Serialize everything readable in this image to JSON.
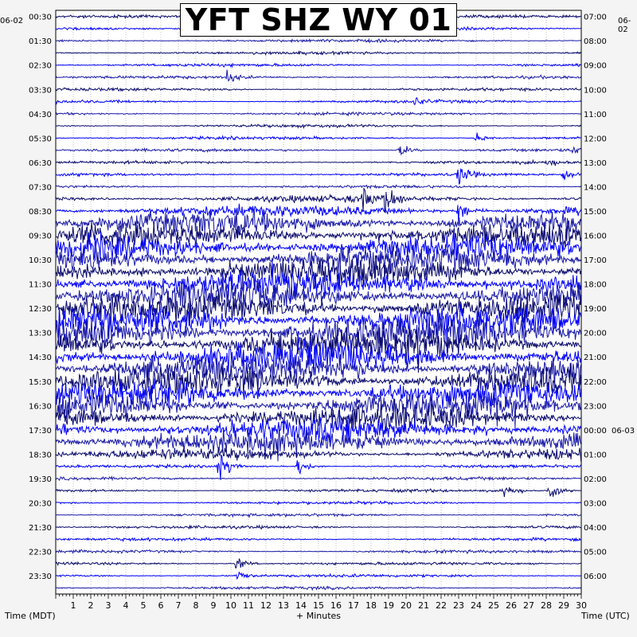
{
  "chart_data": {
    "type": "helicorder",
    "title": "YFT SHZ WY 01",
    "left_date": "06-02",
    "right_date": "06-02",
    "right_date_change": "06-03",
    "left_time_labels": [
      "00:30",
      "01:30",
      "02:30",
      "03:30",
      "04:30",
      "05:30",
      "06:30",
      "07:30",
      "08:30",
      "09:30",
      "10:30",
      "11:30",
      "12:30",
      "13:30",
      "14:30",
      "15:30",
      "16:30",
      "17:30",
      "18:30",
      "19:30",
      "20:30",
      "21:30",
      "22:30",
      "23:30"
    ],
    "right_time_labels": [
      "07:00",
      "08:00",
      "09:00",
      "10:00",
      "11:00",
      "12:00",
      "13:00",
      "14:00",
      "15:00",
      "16:00",
      "17:00",
      "18:00",
      "19:00",
      "20:00",
      "21:00",
      "22:00",
      "23:00",
      "00:00",
      "01:00",
      "02:00",
      "03:00",
      "04:00",
      "05:00",
      "06:00"
    ],
    "right_date_change_row": 17,
    "x_ticks": [
      "1",
      "2",
      "3",
      "4",
      "5",
      "6",
      "7",
      "8",
      "9",
      "10",
      "11",
      "12",
      "13",
      "14",
      "15",
      "16",
      "17",
      "18",
      "19",
      "20",
      "21",
      "22",
      "23",
      "24",
      "25",
      "26",
      "27",
      "28",
      "29",
      "30"
    ],
    "xlabel": "+ Minutes",
    "left_axis_label": "Time (MDT)",
    "right_axis_label": "Time (UTC)",
    "xlim": [
      0,
      30
    ],
    "minutes_per_line": 30,
    "line_count": 48,
    "trace_colors": [
      "#0a0a6e",
      "#0000ff",
      "#1a1aa8"
    ],
    "grid": true,
    "noisy_period_lines": [
      17,
      35
    ],
    "events": [
      {
        "line": 5,
        "minute": 9.8,
        "size": 3
      },
      {
        "line": 7,
        "minute": 20.5,
        "size": 2
      },
      {
        "line": 10,
        "minute": 24.0,
        "size": 2
      },
      {
        "line": 11,
        "minute": 19.6,
        "size": 4
      },
      {
        "line": 11,
        "minute": 29.5,
        "size": 2
      },
      {
        "line": 12,
        "minute": 28.0,
        "size": 2
      },
      {
        "line": 13,
        "minute": 23.0,
        "size": 5
      },
      {
        "line": 13,
        "minute": 29.0,
        "size": 4
      },
      {
        "line": 15,
        "minute": 18.8,
        "size": 7
      },
      {
        "line": 15,
        "minute": 17.5,
        "size": 5
      },
      {
        "line": 16,
        "minute": 23.0,
        "size": 5
      },
      {
        "line": 37,
        "minute": 9.3,
        "size": 10
      },
      {
        "line": 37,
        "minute": 13.8,
        "size": 5
      },
      {
        "line": 39,
        "minute": 25.6,
        "size": 5
      },
      {
        "line": 39,
        "minute": 28.2,
        "size": 5
      },
      {
        "line": 45,
        "minute": 10.3,
        "size": 4
      },
      {
        "line": 46,
        "minute": 10.4,
        "size": 3
      }
    ]
  }
}
